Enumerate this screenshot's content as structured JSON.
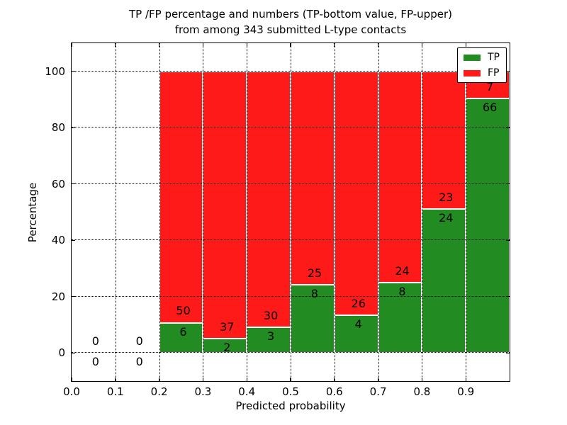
{
  "chart_data": {
    "type": "bar",
    "stacked": true,
    "title_line1": "TP /FP percentage and numbers (TP-bottom value, FP-upper)",
    "title_line2": "from among 343 submitted L-type contacts",
    "xlabel": "Predicted probability",
    "ylabel": "Percentage",
    "xlim": [
      0.0,
      1.0
    ],
    "ylim": [
      -10,
      110
    ],
    "grid": true,
    "x_ticks": [
      {
        "value": 0.0,
        "label": "0.0"
      },
      {
        "value": 0.1,
        "label": "0.1"
      },
      {
        "value": 0.2,
        "label": "0.2"
      },
      {
        "value": 0.3,
        "label": "0.3"
      },
      {
        "value": 0.4,
        "label": "0.4"
      },
      {
        "value": 0.5,
        "label": "0.5"
      },
      {
        "value": 0.6,
        "label": "0.6"
      },
      {
        "value": 0.7,
        "label": "0.7"
      },
      {
        "value": 0.8,
        "label": "0.8"
      },
      {
        "value": 0.9,
        "label": "0.9"
      }
    ],
    "y_ticks": [
      {
        "value": 0,
        "label": "0"
      },
      {
        "value": 20,
        "label": "20"
      },
      {
        "value": 40,
        "label": "40"
      },
      {
        "value": 60,
        "label": "60"
      },
      {
        "value": 80,
        "label": "80"
      },
      {
        "value": 100,
        "label": "100"
      }
    ],
    "series_note": "Each 0.1-wide bin stacks TP (green, bottom) and FP (red, top) to 100%; numbers shown are raw counts",
    "bins": [
      {
        "x0": 0.0,
        "x1": 0.1,
        "tp_count": 0,
        "fp_count": 0,
        "tp_pct": 0,
        "fp_pct": 0
      },
      {
        "x0": 0.1,
        "x1": 0.2,
        "tp_count": 0,
        "fp_count": 0,
        "tp_pct": 0,
        "fp_pct": 0
      },
      {
        "x0": 0.2,
        "x1": 0.3,
        "tp_count": 6,
        "fp_count": 50,
        "tp_pct": 10.71,
        "fp_pct": 89.29
      },
      {
        "x0": 0.3,
        "x1": 0.4,
        "tp_count": 2,
        "fp_count": 37,
        "tp_pct": 5.13,
        "fp_pct": 94.87
      },
      {
        "x0": 0.4,
        "x1": 0.5,
        "tp_count": 3,
        "fp_count": 30,
        "tp_pct": 9.09,
        "fp_pct": 90.91
      },
      {
        "x0": 0.5,
        "x1": 0.6,
        "tp_count": 8,
        "fp_count": 25,
        "tp_pct": 24.24,
        "fp_pct": 75.76
      },
      {
        "x0": 0.6,
        "x1": 0.7,
        "tp_count": 4,
        "fp_count": 26,
        "tp_pct": 13.33,
        "fp_pct": 86.67
      },
      {
        "x0": 0.7,
        "x1": 0.8,
        "tp_count": 8,
        "fp_count": 24,
        "tp_pct": 25.0,
        "fp_pct": 75.0
      },
      {
        "x0": 0.8,
        "x1": 0.9,
        "tp_count": 24,
        "fp_count": 23,
        "tp_pct": 51.06,
        "fp_pct": 48.94
      },
      {
        "x0": 0.9,
        "x1": 1.0,
        "tp_count": 66,
        "fp_count": 7,
        "tp_pct": 90.41,
        "fp_pct": 9.59
      }
    ],
    "legend": {
      "position": "upper right",
      "entries": [
        {
          "label": "TP",
          "color": "#228b22"
        },
        {
          "label": "FP",
          "color": "#ff1a1a"
        }
      ]
    },
    "colors": {
      "tp": "#228b22",
      "fp": "#ff1a1a",
      "grid": "#000000",
      "text": "#000000",
      "background": "#ffffff"
    }
  }
}
